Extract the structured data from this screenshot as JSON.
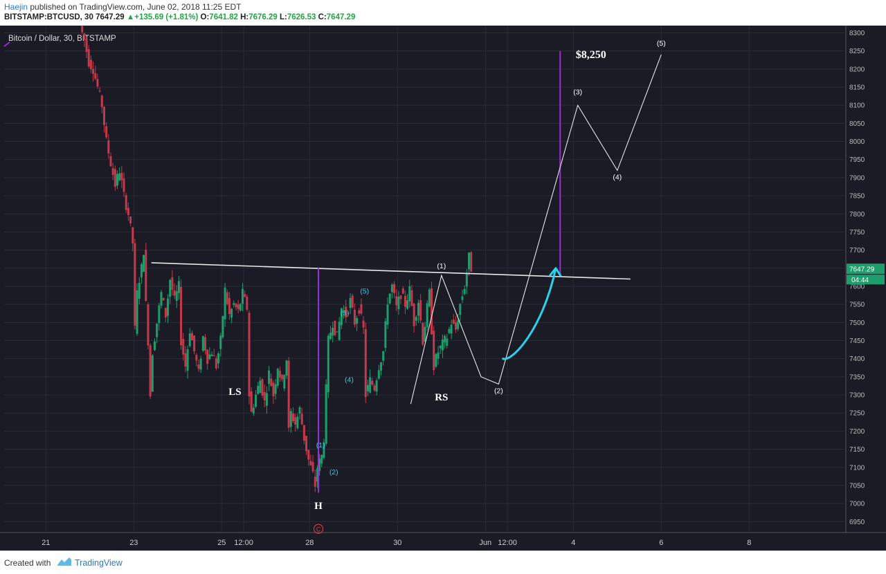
{
  "header": {
    "author": "Haejin",
    "published_text": "published on TradingView.com, June 02, 2018 11:25 EDT",
    "symbol": "BITSTAMP:BTCUSD, 30",
    "last": "7647.29",
    "change_arrow": "▲",
    "change": "+135.69 (+1.81%)",
    "o_label": "O:",
    "o_value": "7641.82",
    "h_label": "H:",
    "h_value": "7676.29",
    "l_label": "L:",
    "l_value": "7626.53",
    "c_label": "C:",
    "c_value": "7647.29"
  },
  "footer": {
    "created_with": "Created with",
    "brand": "TradingView",
    "logo_icon": "tradingview-logo-icon"
  },
  "colors": {
    "background": "#1b1b26",
    "grid": "#2a2a36",
    "bull": "#1e9e6c",
    "bear": "#c43a4b",
    "purple": "#9b2dd8",
    "cyan": "#2bd3e8",
    "white": "#e8e8e8",
    "price_tag": "#1e9e6c"
  },
  "chart_data": {
    "type": "candlestick",
    "title": "Bitcoin / Dollar, 30, BITSTAMP",
    "ylim": [
      6920,
      8320
    ],
    "y_ticks": [
      6950,
      7000,
      7050,
      7100,
      7150,
      7200,
      7250,
      7300,
      7350,
      7400,
      7450,
      7500,
      7550,
      7600,
      7650,
      7700,
      7750,
      7800,
      7850,
      7900,
      7950,
      8000,
      8050,
      8100,
      8150,
      8200,
      8250,
      8300
    ],
    "x_ticks": [
      "21",
      "23",
      "25",
      "12:00",
      "28",
      "30",
      "Jun",
      "12:00",
      "4",
      "6",
      "8"
    ],
    "x_tick_positions": [
      1,
      3,
      5,
      5.5,
      7,
      9,
      11,
      11.5,
      13,
      15,
      17
    ],
    "xlim": [
      0.05,
      19.2
    ],
    "price_path": [
      [
        1.8,
        8320
      ],
      [
        1.9,
        8280
      ],
      [
        2.0,
        8220
      ],
      [
        2.1,
        8200
      ],
      [
        2.2,
        8150
      ],
      [
        2.3,
        8100
      ],
      [
        2.4,
        8000
      ],
      [
        2.5,
        7940
      ],
      [
        2.6,
        7880
      ],
      [
        2.7,
        7920
      ],
      [
        2.8,
        7850
      ],
      [
        2.9,
        7800
      ],
      [
        3.0,
        7720
      ],
      [
        3.05,
        7480
      ],
      [
        3.1,
        7580
      ],
      [
        3.15,
        7620
      ],
      [
        3.2,
        7650
      ],
      [
        3.25,
        7700
      ],
      [
        3.3,
        7550
      ],
      [
        3.35,
        7450
      ],
      [
        3.4,
        7300
      ],
      [
        3.45,
        7420
      ],
      [
        3.55,
        7500
      ],
      [
        3.65,
        7580
      ],
      [
        3.75,
        7520
      ],
      [
        3.85,
        7620
      ],
      [
        3.95,
        7560
      ],
      [
        4.05,
        7600
      ],
      [
        4.1,
        7450
      ],
      [
        4.2,
        7380
      ],
      [
        4.3,
        7480
      ],
      [
        4.4,
        7420
      ],
      [
        4.5,
        7360
      ],
      [
        4.6,
        7460
      ],
      [
        4.7,
        7400
      ],
      [
        4.8,
        7420
      ],
      [
        4.9,
        7380
      ],
      [
        5.0,
        7450
      ],
      [
        5.1,
        7590
      ],
      [
        5.2,
        7520
      ],
      [
        5.3,
        7550
      ],
      [
        5.4,
        7530
      ],
      [
        5.5,
        7580
      ],
      [
        5.6,
        7540
      ],
      [
        5.65,
        7300
      ],
      [
        5.7,
        7250
      ],
      [
        5.8,
        7300
      ],
      [
        5.9,
        7340
      ],
      [
        6.0,
        7280
      ],
      [
        6.1,
        7360
      ],
      [
        6.2,
        7300
      ],
      [
        6.3,
        7380
      ],
      [
        6.4,
        7330
      ],
      [
        6.5,
        7400
      ],
      [
        6.55,
        7200
      ],
      [
        6.6,
        7250
      ],
      [
        6.7,
        7220
      ],
      [
        6.8,
        7260
      ],
      [
        6.9,
        7180
      ],
      [
        7.0,
        7120
      ],
      [
        7.1,
        7080
      ],
      [
        7.15,
        7050
      ],
      [
        7.2,
        7100
      ],
      [
        7.3,
        7130
      ],
      [
        7.35,
        7180
      ],
      [
        7.45,
        7450
      ],
      [
        7.55,
        7500
      ],
      [
        7.65,
        7460
      ],
      [
        7.75,
        7540
      ],
      [
        7.85,
        7520
      ],
      [
        7.95,
        7560
      ],
      [
        8.05,
        7500
      ],
      [
        8.15,
        7540
      ],
      [
        8.25,
        7480
      ],
      [
        8.3,
        7300
      ],
      [
        8.4,
        7340
      ],
      [
        8.5,
        7320
      ],
      [
        8.6,
        7380
      ],
      [
        8.7,
        7420
      ],
      [
        8.8,
        7560
      ],
      [
        8.9,
        7600
      ],
      [
        9.0,
        7540
      ],
      [
        9.1,
        7580
      ],
      [
        9.2,
        7550
      ],
      [
        9.3,
        7590
      ],
      [
        9.4,
        7500
      ],
      [
        9.5,
        7560
      ],
      [
        9.6,
        7450
      ],
      [
        9.7,
        7540
      ],
      [
        9.75,
        7580
      ],
      [
        9.85,
        7380
      ],
      [
        9.95,
        7420
      ],
      [
        10.05,
        7440
      ],
      [
        10.15,
        7460
      ],
      [
        10.25,
        7500
      ],
      [
        10.35,
        7480
      ],
      [
        10.45,
        7550
      ],
      [
        10.55,
        7600
      ],
      [
        10.65,
        7680
      ],
      [
        10.7,
        7650
      ]
    ],
    "annotations": {
      "neckline": [
        [
          3.4,
          7665
        ],
        [
          14.3,
          7620
        ]
      ],
      "neckline_label": "",
      "head_measure_line": [
        [
          7.2,
          7650
        ],
        [
          7.2,
          7030
        ]
      ],
      "target_line": [
        [
          12.7,
          8250
        ],
        [
          12.7,
          7630
        ]
      ],
      "target_label": "$8,250",
      "ls_label": "LS",
      "rs_label": "RS",
      "head_label": "H",
      "c_marker": "C",
      "wave_labels_cyan": [
        {
          "label": "(1)",
          "x": 7.25,
          "y": 7155
        },
        {
          "label": "(2)",
          "x": 7.55,
          "y": 7080
        },
        {
          "label": "(3)",
          "x": 7.8,
          "y": 7520
        },
        {
          "label": "(4)",
          "x": 7.9,
          "y": 7335
        },
        {
          "label": "(5)",
          "x": 8.25,
          "y": 7580
        }
      ],
      "projection_path": [
        [
          9.3,
          7275
        ],
        [
          10.0,
          7630
        ],
        [
          10.9,
          7350
        ],
        [
          11.3,
          7330
        ],
        [
          13.1,
          8100
        ],
        [
          14.0,
          7920
        ],
        [
          15.0,
          8240
        ]
      ],
      "projection_labels": [
        {
          "label": "(1)",
          "x": 10.0,
          "y": 7650
        },
        {
          "label": "(2)",
          "x": 11.3,
          "y": 7305
        },
        {
          "label": "(3)",
          "x": 13.1,
          "y": 8130
        },
        {
          "label": "(4)",
          "x": 14.0,
          "y": 7895
        },
        {
          "label": "(5)",
          "x": 15.0,
          "y": 8265
        }
      ],
      "cyan_curve": [
        [
          11.4,
          7400
        ],
        [
          11.6,
          7390
        ],
        [
          12.3,
          7480
        ],
        [
          12.6,
          7650
        ]
      ],
      "current_price_tag": "7647.29",
      "countdown_tag": "04:44"
    }
  }
}
